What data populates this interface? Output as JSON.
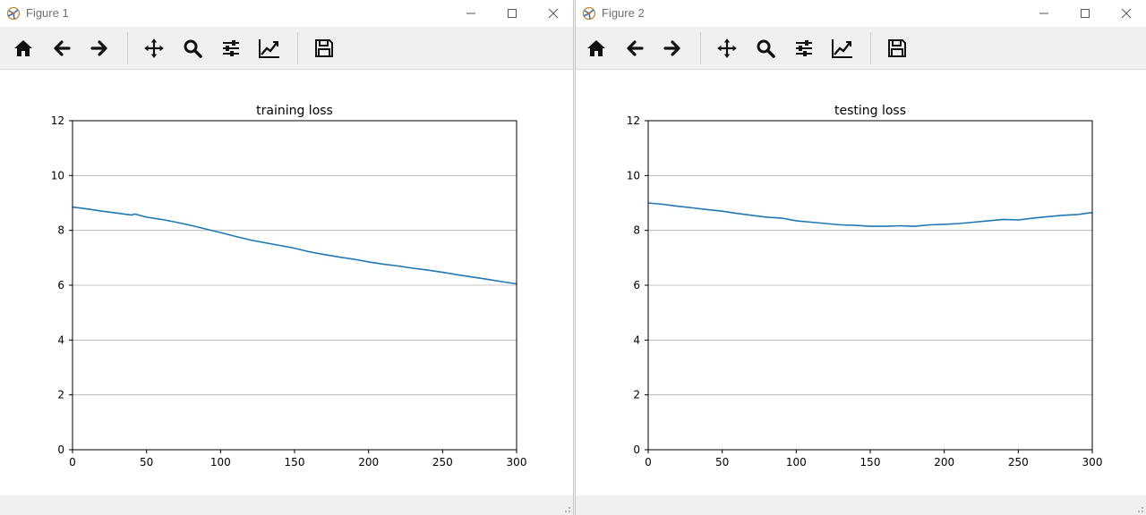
{
  "windows": [
    {
      "title": "Figure 1",
      "toolbar": {
        "home": "home-icon",
        "back": "arrow-left-icon",
        "forward": "arrow-right-icon",
        "pan": "move-icon",
        "zoom": "magnifier-icon",
        "configure": "sliders-icon",
        "edit": "line-chart-icon",
        "save": "save-icon"
      },
      "chart_data": {
        "type": "line",
        "title": "training loss",
        "xlabel": "",
        "ylabel": "",
        "xlim": [
          0,
          300
        ],
        "ylim": [
          0,
          12
        ],
        "xticks": [
          "0",
          "50",
          "100",
          "150",
          "200",
          "250",
          "300"
        ],
        "yticks": [
          "0",
          "2",
          "4",
          "6",
          "8",
          "10",
          "12"
        ],
        "grid": "horizontal",
        "line_color": "#1f77b4",
        "series": [
          {
            "name": "training loss",
            "x": [
              0,
              10,
              20,
              30,
              40,
              42,
              50,
              60,
              70,
              80,
              90,
              100,
              110,
              120,
              130,
              140,
              150,
              160,
              170,
              180,
              190,
              200,
              210,
              220,
              230,
              240,
              250,
              260,
              270,
              280,
              290,
              300
            ],
            "y": [
              8.85,
              8.78,
              8.7,
              8.63,
              8.56,
              8.6,
              8.48,
              8.4,
              8.3,
              8.18,
              8.05,
              7.92,
              7.78,
              7.65,
              7.55,
              7.45,
              7.35,
              7.22,
              7.12,
              7.03,
              6.95,
              6.85,
              6.77,
              6.7,
              6.62,
              6.55,
              6.47,
              6.38,
              6.3,
              6.22,
              6.13,
              6.05
            ]
          }
        ]
      }
    },
    {
      "title": "Figure 2",
      "toolbar": {
        "home": "home-icon",
        "back": "arrow-left-icon",
        "forward": "arrow-right-icon",
        "pan": "move-icon",
        "zoom": "magnifier-icon",
        "configure": "sliders-icon",
        "edit": "line-chart-icon",
        "save": "save-icon"
      },
      "chart_data": {
        "type": "line",
        "title": "testing loss",
        "xlabel": "",
        "ylabel": "",
        "xlim": [
          0,
          300
        ],
        "ylim": [
          0,
          12
        ],
        "xticks": [
          "0",
          "50",
          "100",
          "150",
          "200",
          "250",
          "300"
        ],
        "yticks": [
          "0",
          "2",
          "4",
          "6",
          "8",
          "10",
          "12"
        ],
        "grid": "horizontal",
        "line_color": "#1f77b4",
        "series": [
          {
            "name": "testing loss",
            "x": [
              0,
              10,
              20,
              30,
              40,
              50,
              60,
              70,
              80,
              90,
              100,
              110,
              120,
              130,
              140,
              150,
              160,
              170,
              180,
              190,
              200,
              210,
              220,
              230,
              240,
              250,
              260,
              270,
              280,
              290,
              300
            ],
            "y": [
              9.0,
              8.95,
              8.88,
              8.82,
              8.76,
              8.7,
              8.62,
              8.55,
              8.48,
              8.45,
              8.35,
              8.3,
              8.25,
              8.2,
              8.18,
              8.15,
              8.15,
              8.17,
              8.15,
              8.2,
              8.22,
              8.25,
              8.3,
              8.35,
              8.4,
              8.38,
              8.45,
              8.5,
              8.55,
              8.58,
              8.65
            ]
          }
        ]
      }
    }
  ]
}
